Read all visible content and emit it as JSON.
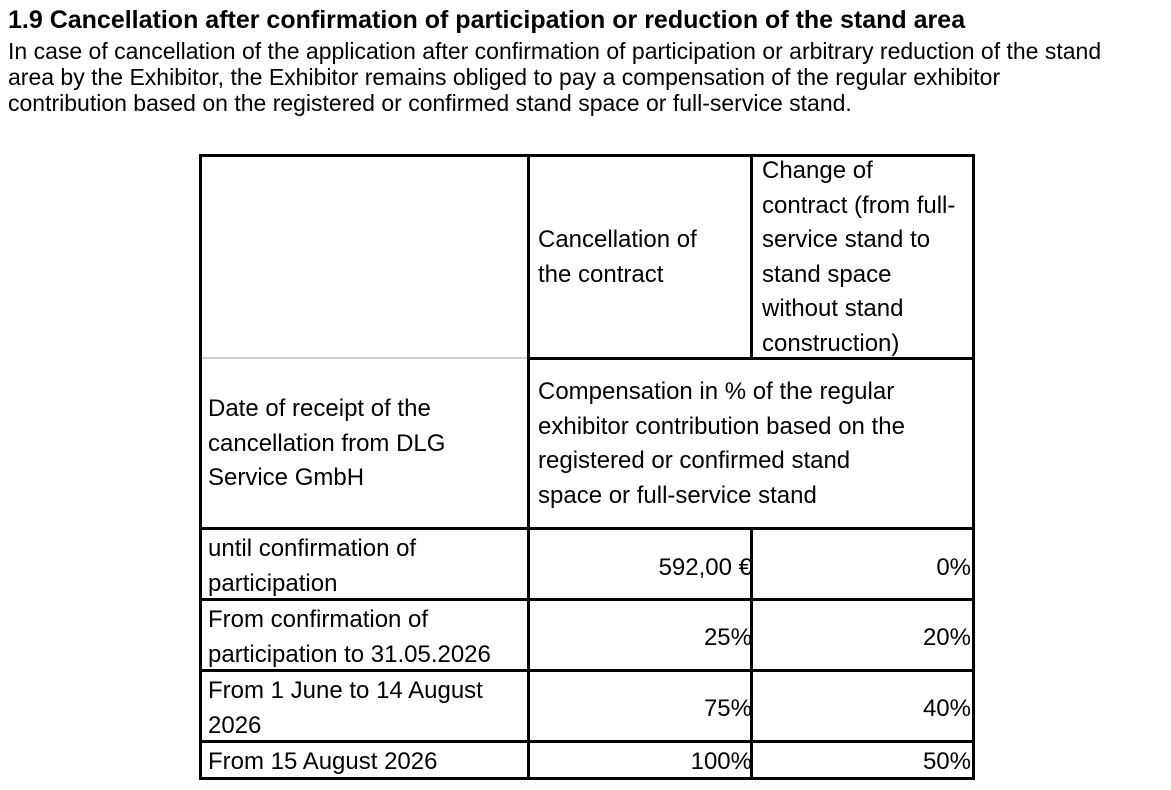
{
  "section": {
    "title": "1.9 Cancellation after confirmation of participation or reduction of the stand area",
    "intro_lines": [
      "In case of cancellation of the application after confirmation of participation or arbitrary reduction of the stand",
      "area by the Exhibitor, the Exhibitor remains obliged to pay a compensation of the regular exhibitor",
      "contribution based on the registered or confirmed stand space or full-service stand."
    ]
  },
  "table": {
    "header": {
      "col2_lines": [
        "Cancellation of",
        "the contract"
      ],
      "col3_lines": [
        "Change of",
        "contract (from full-",
        "service stand to",
        "stand space",
        "without stand",
        "construction)"
      ]
    },
    "subheader": {
      "col1_lines": [
        "Date of receipt of the",
        "cancellation from DLG",
        "Service GmbH"
      ],
      "compensation_lines": [
        "Compensation in % of the regular",
        "exhibitor contribution based on the",
        "registered or confirmed stand",
        "space or full-service stand"
      ]
    },
    "rows": [
      {
        "period_lines": [
          "until confirmation of",
          "participation"
        ],
        "cancellation": "592,00 €",
        "change": "0%"
      },
      {
        "period_lines": [
          "From confirmation of",
          "participation to 31.05.2026"
        ],
        "cancellation": "25%",
        "change": "20%"
      },
      {
        "period_lines": [
          "From 1 June to 14 August",
          "2026"
        ],
        "cancellation": "75%",
        "change": "40%"
      },
      {
        "period_lines": [
          "From 15 August 2026"
        ],
        "cancellation": "100%",
        "change": "50%"
      }
    ]
  }
}
